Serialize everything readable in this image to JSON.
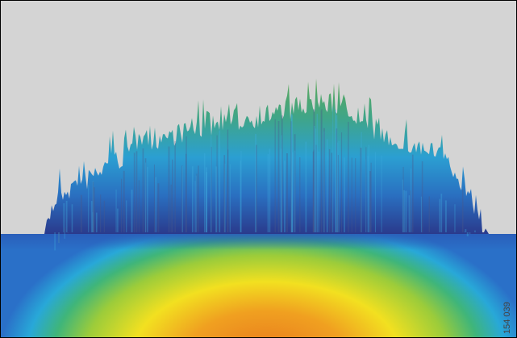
{
  "figure_id": "154 039"
}
